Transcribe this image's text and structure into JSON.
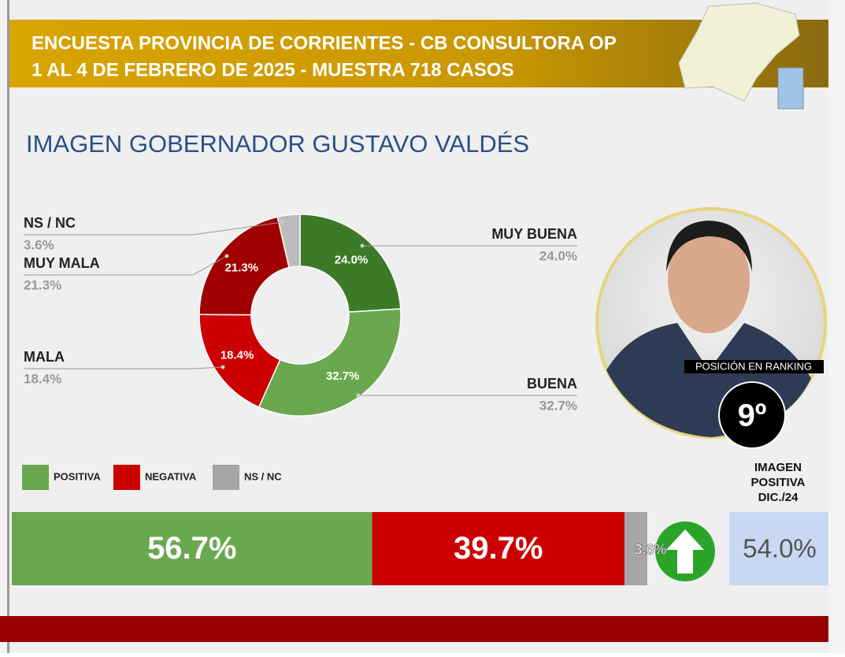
{
  "header": {
    "line1": "ENCUESTA PROVINCIA DE CORRIENTES - CB CONSULTORA OP",
    "line2": "1 AL 4 DE FEBRERO DE 2025 - MUESTRA 718 CASOS"
  },
  "chart_data": [
    {
      "type": "pie",
      "title": "IMAGEN GOBERNADOR  GUSTAVO VALDÉS",
      "categories": [
        "MUY BUENA",
        "BUENA",
        "MALA",
        "MUY MALA",
        "NS / NC"
      ],
      "values": [
        24.0,
        32.7,
        18.4,
        21.3,
        3.6
      ],
      "value_labels": [
        "24.0%",
        "32.7%",
        "18.4%",
        "21.3%",
        "3.6%"
      ],
      "colors": [
        "#3d7a28",
        "#6aa84f",
        "#cc0000",
        "#a00000",
        "#bdbdbd"
      ]
    },
    {
      "type": "stacked_bar",
      "categories": [
        "POSITIVA",
        "NEGATIVA",
        "NS / NC"
      ],
      "values": [
        56.7,
        39.7,
        3.6
      ],
      "value_labels": [
        "56.7%",
        "39.7%",
        "3.6%"
      ],
      "colors": [
        "#6aa84f",
        "#cc0000",
        "#a6a6a6"
      ]
    }
  ],
  "ranking": {
    "label": "POSICIÓN EN RANKING",
    "value": "9º"
  },
  "previous": {
    "label_lines": [
      "IMAGEN",
      "POSITIVA",
      "DIC./24"
    ],
    "value": 54.0,
    "value_label": "54.0%"
  }
}
